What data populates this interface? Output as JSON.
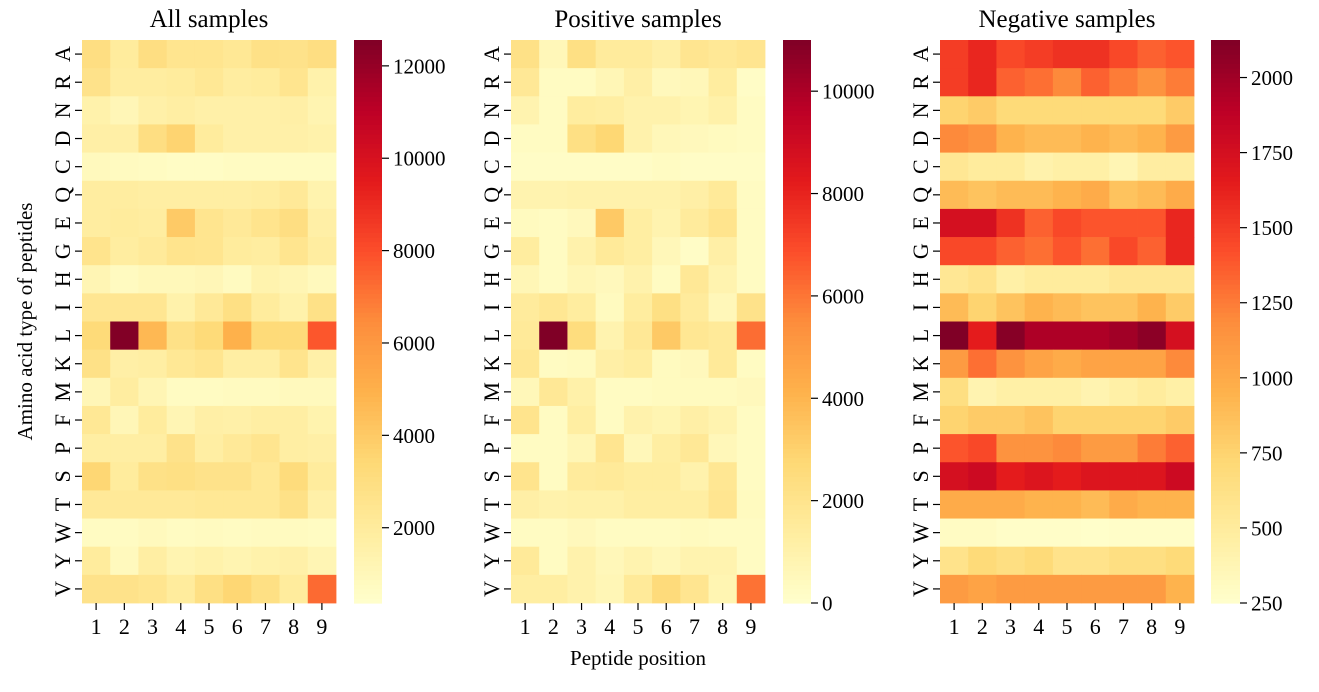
{
  "chart_data": {
    "type": "heatmap",
    "shared": {
      "xlabel": "Peptide position",
      "ylabel": "Amino acid type of peptides",
      "x_categories": [
        "1",
        "2",
        "3",
        "4",
        "5",
        "6",
        "7",
        "8",
        "9"
      ],
      "y_categories": [
        "A",
        "R",
        "N",
        "D",
        "C",
        "Q",
        "E",
        "G",
        "H",
        "I",
        "L",
        "K",
        "M",
        "F",
        "P",
        "S",
        "T",
        "W",
        "Y",
        "V"
      ],
      "colormap": "YlOrRd"
    },
    "panels": [
      {
        "title": "All samples",
        "vmin": 370,
        "vmax": 12560,
        "colorbar_ticks": [
          2000,
          4000,
          6000,
          8000,
          10000,
          12000
        ],
        "colorbar_tick_labels": [
          "2000",
          "4000",
          "6000",
          "8000",
          "10000",
          "12000"
        ],
        "values": [
          [
            3000,
            2000,
            3000,
            2500,
            2500,
            2300,
            2800,
            2700,
            3000
          ],
          [
            2700,
            1900,
            1900,
            2000,
            2300,
            1900,
            2000,
            2500,
            1500
          ],
          [
            1500,
            1100,
            1600,
            1800,
            1600,
            1600,
            1600,
            1700,
            1300
          ],
          [
            1700,
            1700,
            3000,
            3600,
            2000,
            1600,
            1600,
            1600,
            1500
          ],
          [
            900,
            800,
            700,
            600,
            600,
            700,
            700,
            700,
            700
          ],
          [
            1900,
            1900,
            1800,
            1800,
            1800,
            1800,
            1900,
            2200,
            1400
          ],
          [
            1900,
            2000,
            1900,
            4000,
            2500,
            2200,
            2600,
            3000,
            1700
          ],
          [
            2600,
            1900,
            2100,
            2600,
            2500,
            2000,
            1900,
            2500,
            1900
          ],
          [
            1200,
            800,
            1000,
            1000,
            1100,
            800,
            1400,
            1200,
            900
          ],
          [
            2400,
            2400,
            2400,
            1500,
            2200,
            2900,
            2000,
            1500,
            2800
          ],
          [
            3300,
            12500,
            4700,
            2800,
            3300,
            5000,
            3300,
            3300,
            7800
          ],
          [
            2800,
            1700,
            1800,
            2300,
            2500,
            1800,
            1800,
            2600,
            1600
          ],
          [
            1100,
            1900,
            1200,
            700,
            700,
            800,
            800,
            900,
            900
          ],
          [
            2300,
            1100,
            2000,
            1200,
            1700,
            1600,
            1800,
            1800,
            1400
          ],
          [
            1800,
            1800,
            1800,
            2700,
            1800,
            2200,
            2500,
            1800,
            1700
          ],
          [
            3500,
            2000,
            2800,
            2900,
            2700,
            2700,
            2300,
            3200,
            2000
          ],
          [
            2200,
            2200,
            2200,
            2200,
            2300,
            2300,
            2300,
            2800,
            1600
          ],
          [
            700,
            700,
            900,
            700,
            800,
            700,
            800,
            800,
            700
          ],
          [
            2000,
            900,
            1800,
            1300,
            1500,
            1300,
            1500,
            1600,
            1200
          ],
          [
            2700,
            2700,
            2500,
            2000,
            2900,
            3500,
            2900,
            2000,
            7300
          ]
        ]
      },
      {
        "title": "Positive samples",
        "vmin": 0,
        "vmax": 11000,
        "colorbar_ticks": [
          0,
          2000,
          4000,
          6000,
          8000,
          10000
        ],
        "colorbar_tick_labels": [
          "0",
          "2000",
          "4000",
          "6000",
          "8000",
          "10000"
        ],
        "values": [
          [
            2200,
            600,
            2300,
            1500,
            1500,
            1200,
            1900,
            1700,
            1900
          ],
          [
            1700,
            300,
            300,
            700,
            1200,
            500,
            600,
            1400,
            200
          ],
          [
            900,
            300,
            1400,
            1300,
            1000,
            1000,
            800,
            1100,
            300
          ],
          [
            300,
            300,
            2300,
            2800,
            1000,
            600,
            500,
            400,
            300
          ],
          [
            200,
            200,
            200,
            200,
            200,
            300,
            200,
            200,
            200
          ],
          [
            900,
            900,
            1000,
            1000,
            1000,
            1000,
            1200,
            1600,
            300
          ],
          [
            400,
            300,
            500,
            3300,
            1300,
            900,
            1500,
            2000,
            300
          ],
          [
            1400,
            300,
            1000,
            1600,
            1300,
            600,
            200,
            1200,
            300
          ],
          [
            700,
            300,
            700,
            500,
            1000,
            300,
            1700,
            900,
            300
          ],
          [
            1500,
            1800,
            1400,
            400,
            1400,
            2300,
            1500,
            600,
            2100
          ],
          [
            1600,
            11000,
            2500,
            900,
            1700,
            3300,
            1800,
            1600,
            6200
          ],
          [
            1800,
            300,
            400,
            1200,
            1400,
            400,
            500,
            1600,
            300
          ],
          [
            600,
            1700,
            1100,
            300,
            300,
            400,
            400,
            400,
            500
          ],
          [
            2000,
            300,
            1300,
            300,
            1000,
            800,
            1200,
            900,
            300
          ],
          [
            300,
            300,
            700,
            1900,
            600,
            1300,
            1700,
            600,
            300
          ],
          [
            2000,
            300,
            1500,
            1600,
            1400,
            1400,
            1000,
            1800,
            300
          ],
          [
            1200,
            1000,
            1100,
            1100,
            1300,
            1300,
            1300,
            1900,
            400
          ],
          [
            300,
            300,
            500,
            300,
            300,
            300,
            400,
            300,
            300
          ],
          [
            1600,
            300,
            1000,
            600,
            900,
            600,
            900,
            900,
            300
          ],
          [
            1300,
            1300,
            1000,
            700,
            1600,
            2600,
            1900,
            800,
            6100
          ]
        ]
      },
      {
        "title": "Negative samples",
        "vmin": 250,
        "vmax": 2125,
        "colorbar_ticks": [
          250,
          500,
          750,
          1000,
          1250,
          1500,
          1750,
          2000
        ],
        "colorbar_tick_labels": [
          "250",
          "500",
          "750",
          "1000",
          "1250",
          "1500",
          "1750",
          "2000"
        ],
        "values": [
          [
            1500,
            1600,
            1450,
            1500,
            1550,
            1550,
            1450,
            1350,
            1400
          ],
          [
            1500,
            1600,
            1350,
            1300,
            1200,
            1350,
            1250,
            1150,
            1250
          ],
          [
            750,
            800,
            700,
            700,
            700,
            700,
            700,
            700,
            800
          ],
          [
            1200,
            1150,
            950,
            900,
            900,
            950,
            900,
            950,
            1100
          ],
          [
            550,
            500,
            500,
            420,
            450,
            450,
            380,
            480,
            480
          ],
          [
            900,
            850,
            900,
            900,
            950,
            1000,
            850,
            900,
            1000
          ],
          [
            1750,
            1750,
            1550,
            1350,
            1450,
            1400,
            1400,
            1400,
            1600
          ],
          [
            1450,
            1450,
            1350,
            1300,
            1400,
            1300,
            1450,
            1350,
            1600
          ],
          [
            550,
            600,
            450,
            500,
            500,
            500,
            550,
            550,
            550
          ],
          [
            900,
            750,
            850,
            950,
            900,
            850,
            850,
            950,
            800
          ],
          [
            2125,
            1650,
            2100,
            1950,
            1950,
            1950,
            2000,
            2080,
            1750
          ],
          [
            1100,
            1300,
            1150,
            1050,
            1000,
            1050,
            1050,
            1050,
            1200
          ],
          [
            650,
            400,
            450,
            450,
            450,
            400,
            450,
            500,
            450
          ],
          [
            750,
            800,
            800,
            850,
            750,
            750,
            750,
            750,
            800
          ],
          [
            1400,
            1450,
            1150,
            1150,
            1200,
            1100,
            1100,
            1250,
            1350
          ],
          [
            1750,
            1800,
            1650,
            1700,
            1650,
            1700,
            1700,
            1700,
            1800
          ],
          [
            1000,
            1000,
            1000,
            950,
            950,
            900,
            1000,
            950,
            950
          ],
          [
            300,
            300,
            270,
            270,
            270,
            260,
            270,
            270,
            270
          ],
          [
            600,
            700,
            650,
            700,
            600,
            600,
            650,
            650,
            700
          ],
          [
            1100,
            1050,
            1100,
            1100,
            1100,
            1100,
            1100,
            1100,
            950
          ]
        ]
      }
    ]
  }
}
